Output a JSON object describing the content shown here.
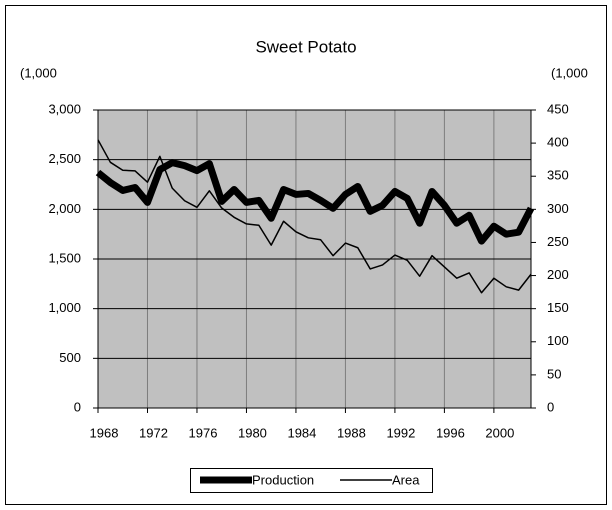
{
  "chart_data": {
    "type": "line",
    "title": "Sweet Potato",
    "y_label": "(1,000",
    "y2_label": "(1,000",
    "x": [
      1968,
      1969,
      1970,
      1971,
      1972,
      1973,
      1974,
      1975,
      1976,
      1977,
      1978,
      1979,
      1980,
      1981,
      1982,
      1983,
      1984,
      1985,
      1986,
      1987,
      1988,
      1989,
      1990,
      1991,
      1992,
      1993,
      1994,
      1995,
      1996,
      1997,
      1998,
      1999,
      2000,
      2001,
      2002,
      2003
    ],
    "series": [
      {
        "name": "Production",
        "color": "#000000",
        "width": 7,
        "values": [
          2370,
          2270,
          2190,
          2220,
          2070,
          2400,
          2470,
          2440,
          2390,
          2460,
          2080,
          2200,
          2070,
          2090,
          1910,
          2200,
          2150,
          2160,
          2090,
          2010,
          2150,
          2230,
          1980,
          2040,
          2180,
          2110,
          1860,
          2180,
          2040,
          1860,
          1940,
          1680,
          1830,
          1750,
          1770,
          2010
        ]
      },
      {
        "name": "Area",
        "color": "#000000",
        "width": 1.5,
        "axis": "y2",
        "values": [
          405,
          371,
          359,
          358,
          341,
          380,
          332,
          313,
          303,
          328,
          302,
          288,
          278,
          276,
          246,
          282,
          266,
          257,
          254,
          230,
          249,
          242,
          210,
          216,
          231,
          223,
          199,
          230,
          213,
          196,
          204,
          174,
          196,
          183,
          178,
          202
        ]
      }
    ],
    "xlim": [
      1968,
      2003
    ],
    "xticks": [
      1968,
      1972,
      1976,
      1980,
      1984,
      1988,
      1992,
      1996,
      2000
    ],
    "ylim": [
      0,
      3000
    ],
    "yticks": [
      0,
      500,
      {
        "value": 1000,
        "label": "1,000"
      },
      {
        "value": 1500,
        "label": "1,500"
      },
      {
        "value": 2000,
        "label": "2,000"
      },
      {
        "value": 2500,
        "label": "2,500"
      },
      {
        "value": 3000,
        "label": "3,000"
      }
    ],
    "y2lim": [
      0,
      450
    ],
    "y2ticks": [
      0,
      50,
      100,
      150,
      200,
      250,
      300,
      350,
      400,
      450
    ],
    "grid": true,
    "plot_background": "#c0c0c0",
    "legend": "bottom"
  }
}
